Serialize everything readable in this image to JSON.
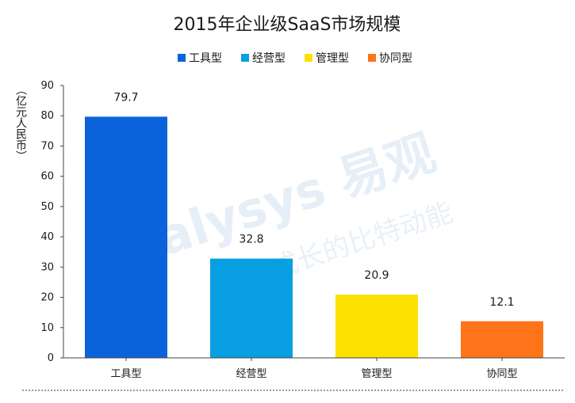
{
  "chart_data": {
    "type": "bar",
    "title": "2015年企业级SaaS市场规模",
    "ylabel": "（亿元人民币）",
    "ylim": [
      0,
      90
    ],
    "yticks": [
      0,
      10,
      20,
      30,
      40,
      50,
      60,
      70,
      80,
      90
    ],
    "categories": [
      "工具型",
      "经营型",
      "管理型",
      "协同型"
    ],
    "values": [
      79.7,
      32.8,
      20.9,
      12.1
    ],
    "value_labels": [
      "79.7",
      "32.8",
      "20.9",
      "12.1"
    ],
    "colors": [
      "#0b63db",
      "#089fe2",
      "#fce000",
      "#ff7418"
    ],
    "legend": {
      "placement": "top-center",
      "entries": [
        "工具型",
        "经营型",
        "管理型",
        "协同型"
      ]
    },
    "grid": false
  },
  "watermark": {
    "main": "nalysys 易观",
    "sub": "指数成长的比特动能"
  }
}
